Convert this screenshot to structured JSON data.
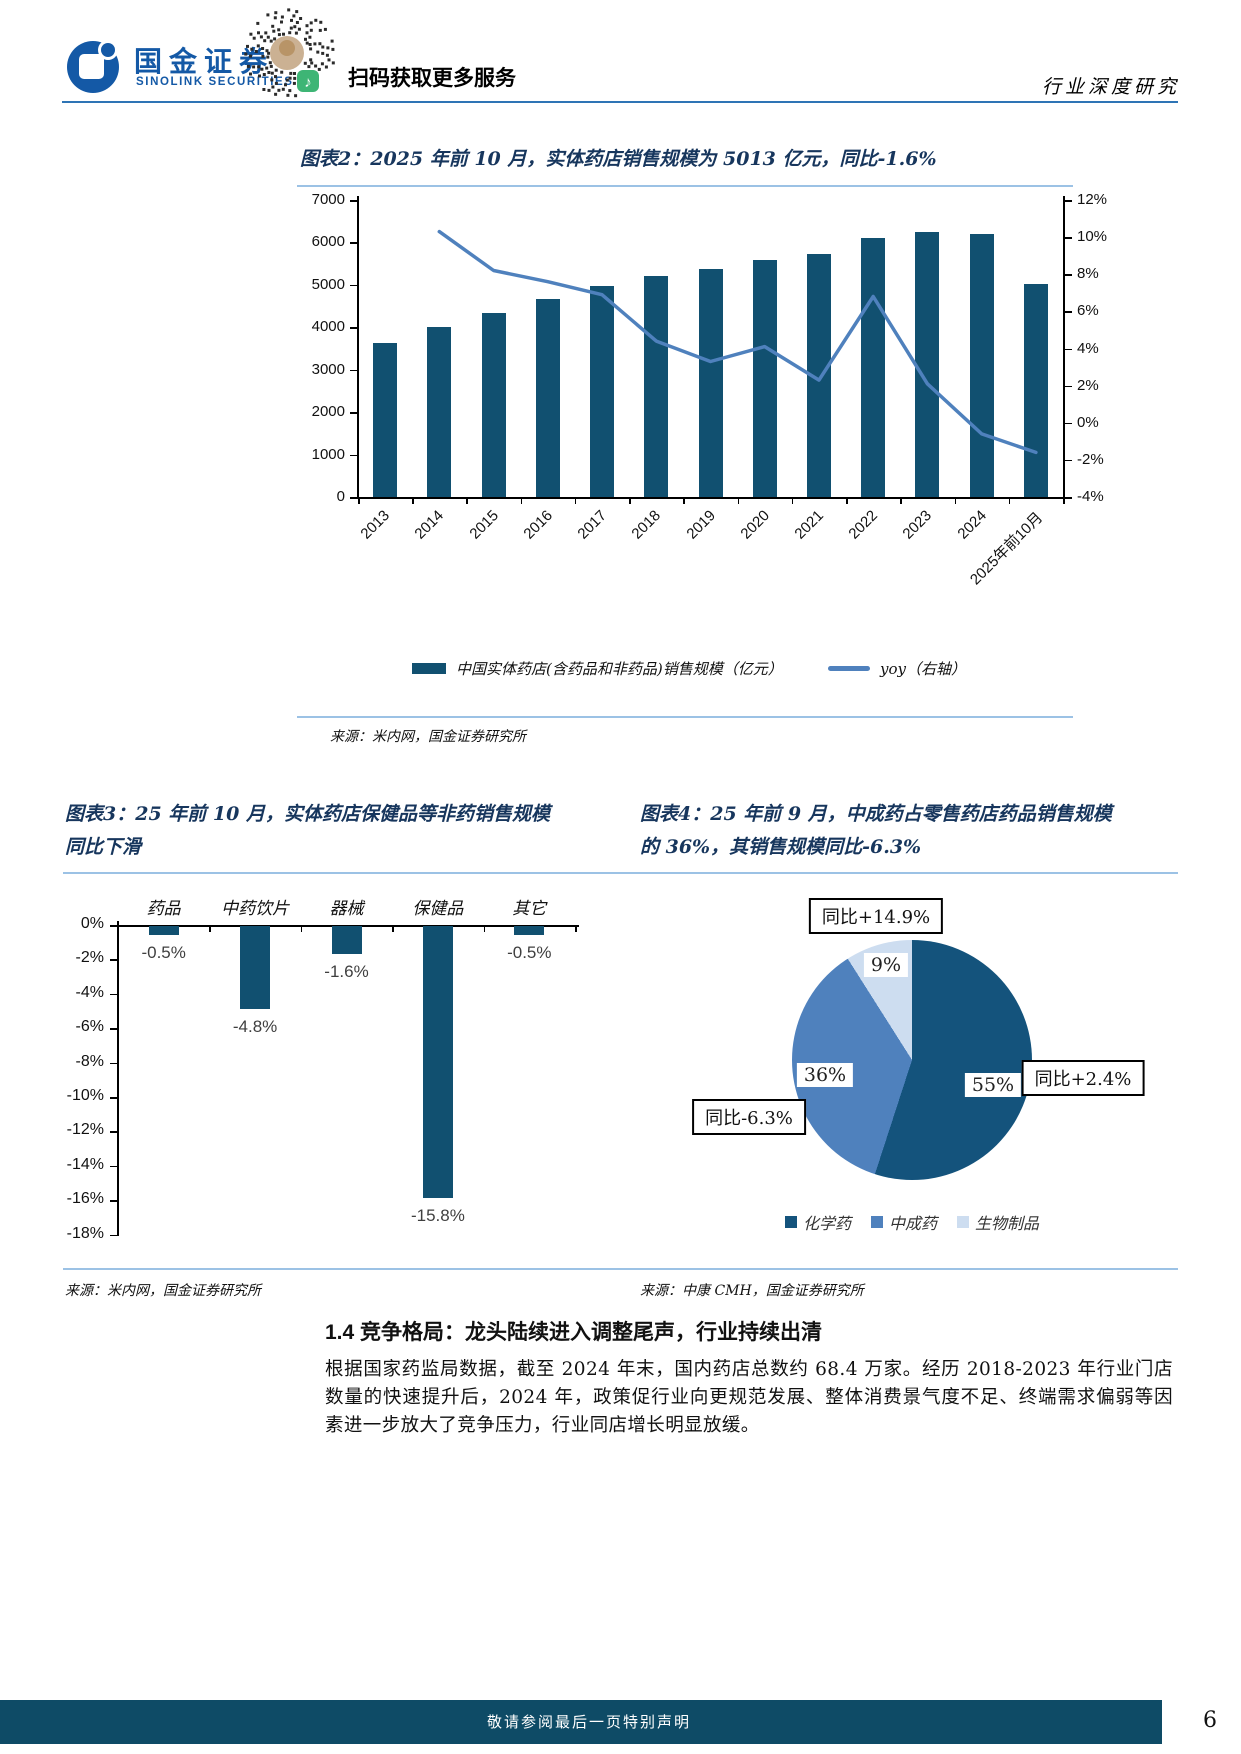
{
  "header": {
    "logo_name": "国金证券",
    "logo_sub": "SINOLINK SECURITIES",
    "qr_caption": "扫码获取更多服务",
    "doc_type": "行业深度研究"
  },
  "colors": {
    "brand": "#1459a6",
    "bar": "#115070",
    "line": "#4f81bd",
    "pie_chemical": "#14537c",
    "pie_tcm": "#4f81bd",
    "pie_bio": "#cdddf0",
    "chart_title": "#17365d",
    "divider": "#9cc2e5",
    "header_rule": "#2e74b5",
    "footer_bg": "#0e4b66"
  },
  "chart_data": [
    {
      "id": "figure-2",
      "type": "bar",
      "title": "图表2：2025 年前 10 月，实体药店销售规模为 5013 亿元，同比-1.6%",
      "categories": [
        "2013",
        "2014",
        "2015",
        "2016",
        "2017",
        "2018",
        "2019",
        "2020",
        "2021",
        "2022",
        "2023",
        "2024",
        "2025年前10月"
      ],
      "series": [
        {
          "name": "中国实体药店(含药品和非药品)销售规模（亿元）",
          "type": "bar",
          "axis": "left",
          "values": [
            3620,
            4000,
            4330,
            4660,
            4980,
            5200,
            5370,
            5590,
            5720,
            6110,
            6240,
            6200,
            5013
          ]
        },
        {
          "name": "yoy（右轴）",
          "type": "line",
          "axis": "right",
          "values": [
            null,
            10.3,
            8.2,
            7.6,
            6.9,
            4.4,
            3.3,
            4.1,
            2.3,
            6.8,
            2.1,
            -0.6,
            -1.6
          ]
        }
      ],
      "left_axis": {
        "min": 0,
        "max": 7000,
        "step": 1000
      },
      "right_axis": {
        "min": -4,
        "max": 12,
        "step": 2,
        "suffix": "%"
      },
      "legend_position": "bottom",
      "source": "来源：米内网，国金证券研究所"
    },
    {
      "id": "figure-3",
      "type": "bar",
      "title": "图表3：25 年前 10 月，实体药店保健品等非药销售规模同比下滑",
      "title_line1": "图表3：25 年前 10 月，实体药店保健品等非药销售规模",
      "title_line2": "同比下滑",
      "categories": [
        "药品",
        "中药饮片",
        "器械",
        "保健品",
        "其它"
      ],
      "values": [
        -0.5,
        -4.8,
        -1.6,
        -15.8,
        -0.5
      ],
      "data_labels": [
        "-0.5%",
        "-4.8%",
        "-1.6%",
        "-15.8%",
        "-0.5%"
      ],
      "ylabel": "",
      "ylim": [
        -18,
        0
      ],
      "y_step": 2,
      "y_suffix": "%",
      "source": "来源：米内网，国金证券研究所"
    },
    {
      "id": "figure-4",
      "type": "pie",
      "title": "图表4：25 年前 9 月，中成药占零售药店药品销售规模的 36%，其销售规模同比-6.3%",
      "title_line1": "图表4：25 年前 9 月，中成药占零售药店药品销售规模",
      "title_line2": "的 36%，其销售规模同比-6.3%",
      "slices": [
        {
          "label": "化学药",
          "value": 55,
          "pct_label": "55%",
          "callout": "同比+2.4%"
        },
        {
          "label": "中成药",
          "value": 36,
          "pct_label": "36%",
          "callout": "同比-6.3%"
        },
        {
          "label": "生物制品",
          "value": 9,
          "pct_label": "9%",
          "callout": "同比+14.9%"
        }
      ],
      "legend": [
        "化学药",
        "中成药",
        "生物制品"
      ],
      "legend_position": "bottom",
      "source": "来源：中康 CMH，国金证券研究所"
    }
  ],
  "section": {
    "heading": "1.4 竞争格局：龙头陆续进入调整尾声，行业持续出清",
    "paragraph": "根据国家药监局数据，截至 2024 年末，国内药店总数约 68.4 万家。经历 2018-2023 年行业门店数量的快速提升后，2024 年，政策促行业向更规范发展、整体消费景气度不足、终端需求偏弱等因素进一步放大了竞争压力，行业同店增长明显放缓。"
  },
  "footer": {
    "disclaimer": "敬请参阅最后一页特别声明",
    "page_number": "6"
  }
}
